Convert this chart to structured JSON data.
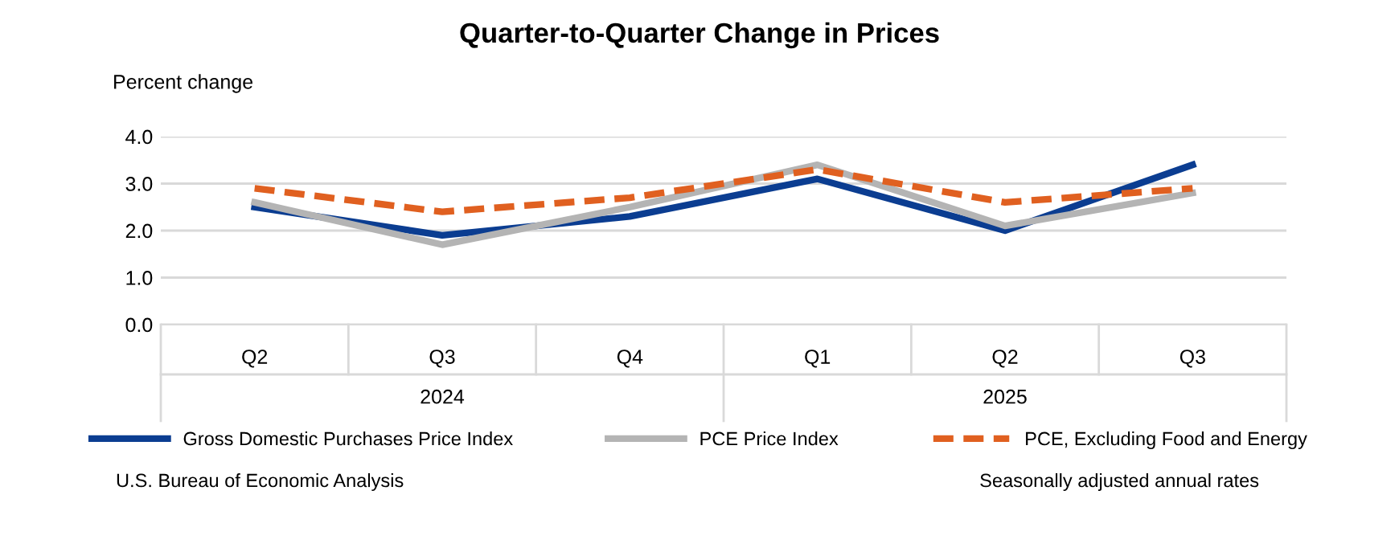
{
  "chart_data": {
    "type": "line",
    "title": "Quarter-to-Quarter Change in Prices",
    "ylabel": "Percent change",
    "categories": [
      "Q2",
      "Q3",
      "Q4",
      "Q1",
      "Q2",
      "Q3"
    ],
    "series": [
      {
        "name": "Gross Domestic Purchases Price Index",
        "color": "#0b3d91",
        "values": [
          2.5,
          1.9,
          2.3,
          3.1,
          2.0,
          3.4
        ]
      },
      {
        "name": "PCE Price Index",
        "color": "#b4b4b4",
        "values": [
          2.6,
          1.7,
          2.5,
          3.4,
          2.1,
          2.8
        ]
      },
      {
        "name": "PCE, Excluding Food and Energy",
        "color": "#e06020",
        "values": [
          2.9,
          2.4,
          2.7,
          3.3,
          2.6,
          2.9
        ],
        "line_style": "dashed"
      }
    ],
    "ylim": [
      0,
      4
    ],
    "yticks": [
      {
        "value": 0,
        "label": "0.0"
      },
      {
        "value": 1,
        "label": "1.0"
      },
      {
        "value": 2,
        "label": "2.0"
      },
      {
        "value": 3,
        "label": "3.0"
      },
      {
        "value": 4,
        "label": "4.0"
      }
    ],
    "grid": "y",
    "legend": "bottom",
    "marker": "none",
    "annotations": [
      "2024",
      "2025",
      "U.S. Bureau of Economic Analysis",
      "Seasonally adjusted annual rates"
    ]
  }
}
